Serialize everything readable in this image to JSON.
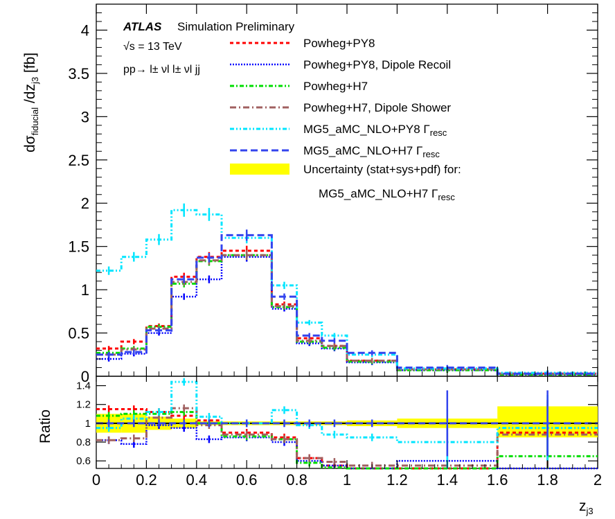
{
  "chart_data": [
    {
      "type": "line",
      "panel": "main",
      "title": "ATLAS Simulation Preliminary",
      "title_bold": "ATLAS",
      "title_rest": "Simulation Preliminary",
      "energy_label": "√s = 13 TeV",
      "process_label": "pp→ l± νl l± νl jj",
      "ylabel": "dσ_fiducial /dz_j3 [fb]",
      "ylabel_main": "dσ",
      "ylabel_sub1": "fiducial",
      "ylabel_mid": " /dz",
      "ylabel_sub2": "j3",
      "ylabel_end": " [fb]",
      "xlabel": "z_j3",
      "xlabel_main": "z",
      "xlabel_sub": "j3",
      "xlim": [
        0,
        2
      ],
      "ylim": [
        0,
        4.3
      ],
      "y_ticks": [
        "0",
        "0.5",
        "1",
        "1.5",
        "2",
        "2.5",
        "3",
        "3.5",
        "4"
      ],
      "x_ticks": [
        "0",
        "0.2",
        "0.4",
        "0.6",
        "0.8",
        "1",
        "1.2",
        "1.4",
        "1.6",
        "1.8",
        "2"
      ],
      "legend_position": "top-right",
      "bin_edges": [
        0,
        0.1,
        0.2,
        0.3,
        0.4,
        0.5,
        0.7,
        0.8,
        0.9,
        1.0,
        1.2,
        1.6,
        2.0
      ],
      "series": [
        {
          "name": "Powheg+PY8",
          "color": "#ff0000",
          "dash": "5,4",
          "width": 3,
          "values": [
            0.32,
            0.4,
            0.58,
            1.15,
            1.38,
            1.45,
            0.83,
            0.44,
            0.35,
            0.18,
            0.08,
            0.03
          ]
        },
        {
          "name": "Powheg+PY8, Dipole Recoil",
          "color": "#0000ff",
          "dash": "2,2",
          "width": 2.5,
          "values": [
            0.2,
            0.26,
            0.5,
            0.92,
            1.12,
            1.38,
            0.78,
            0.38,
            0.32,
            0.16,
            0.07,
            0.02
          ]
        },
        {
          "name": "Powheg+H7",
          "color": "#00dd00",
          "dash": "6,3,2,3",
          "width": 3,
          "values": [
            0.27,
            0.32,
            0.57,
            1.07,
            1.33,
            1.4,
            0.8,
            0.4,
            0.33,
            0.17,
            0.07,
            0.02
          ]
        },
        {
          "name": "Powheg+H7, Dipole Shower",
          "color": "#a06060",
          "dash": "9,4,2,4",
          "width": 3,
          "values": [
            0.25,
            0.31,
            0.55,
            1.09,
            1.34,
            1.4,
            0.81,
            0.41,
            0.35,
            0.18,
            0.08,
            0.03
          ]
        },
        {
          "name": "MG5_aMC_NLO+PY8  Γresc",
          "name_main": "MG5_aMC_NLO+PY8  Γ",
          "name_sub": "resc",
          "color": "#00e5ff",
          "dash": "6,3,2,3,2,3",
          "width": 3,
          "values": [
            1.22,
            1.38,
            1.58,
            1.92,
            1.87,
            1.6,
            1.05,
            0.62,
            0.47,
            0.25,
            0.09,
            0.04
          ]
        },
        {
          "name": "MG5_aMC_NLO+H7  Γresc",
          "name_main": "MG5_aMC_NLO+H7  Γ",
          "name_sub": "resc",
          "color": "#3344ee",
          "dash": "10,5",
          "width": 3,
          "values": [
            0.25,
            0.28,
            0.53,
            1.12,
            1.37,
            1.63,
            0.92,
            0.47,
            0.41,
            0.27,
            0.1,
            0.03
          ]
        }
      ],
      "band": {
        "name": "Uncertainty (stat+sys+pdf) for:",
        "name2": "MG5_aMC_NLO+H7  Γresc",
        "name2_main": "MG5_aMC_NLO+H7  Γ",
        "name2_sub": "resc",
        "color": "#ffff00"
      }
    },
    {
      "type": "line",
      "panel": "ratio",
      "ylabel": "Ratio",
      "xlim": [
        0,
        2
      ],
      "ylim": [
        0.52,
        1.5
      ],
      "y_ticks": [
        "0.6",
        "0.8",
        "1",
        "1.2",
        "1.4"
      ],
      "bin_edges": [
        0,
        0.1,
        0.2,
        0.3,
        0.4,
        0.5,
        0.7,
        0.8,
        0.9,
        1.0,
        1.2,
        1.6,
        2.0
      ],
      "band": {
        "lower": [
          0.9,
          0.9,
          0.93,
          0.95,
          0.98,
          0.98,
          0.98,
          0.98,
          0.98,
          0.97,
          0.95,
          0.85
        ],
        "upper": [
          1.1,
          1.1,
          1.07,
          1.05,
          1.02,
          1.02,
          1.02,
          1.02,
          1.02,
          1.03,
          1.05,
          1.18
        ]
      },
      "series": [
        {
          "name": "Powheg+PY8",
          "values": [
            1.15,
            1.15,
            1.12,
            1.08,
            1.03,
            0.9,
            0.85,
            0.63,
            0.55,
            0.52,
            0.52,
            0.9
          ]
        },
        {
          "name": "Powheg+PY8, Dipole Recoil",
          "values": [
            0.82,
            0.78,
            0.98,
            0.95,
            0.83,
            0.85,
            0.8,
            0.6,
            0.55,
            0.52,
            0.6,
            0.52
          ]
        },
        {
          "name": "Powheg+H7",
          "values": [
            1.08,
            1.1,
            1.1,
            1.12,
            1.0,
            0.86,
            0.83,
            0.58,
            0.53,
            0.52,
            0.52,
            0.65
          ]
        },
        {
          "name": "Powheg+H7, Dipole Shower",
          "values": [
            0.82,
            0.84,
            1.06,
            1.16,
            0.98,
            0.88,
            0.83,
            0.63,
            0.59,
            0.55,
            0.55,
            0.88
          ]
        },
        {
          "name": "MG5_aMC_NLO+PY8  Γresc",
          "values": [
            0.95,
            1.05,
            1.12,
            1.44,
            1.07,
            1.0,
            1.14,
            0.98,
            0.88,
            0.85,
            0.8,
            0.95
          ]
        },
        {
          "name": "MG5_aMC_NLO+H7  Γresc",
          "values": [
            1.0,
            1.0,
            1.0,
            1.0,
            1.0,
            1.0,
            1.0,
            1.0,
            1.0,
            1.0,
            1.0,
            1.0
          ]
        }
      ]
    }
  ]
}
